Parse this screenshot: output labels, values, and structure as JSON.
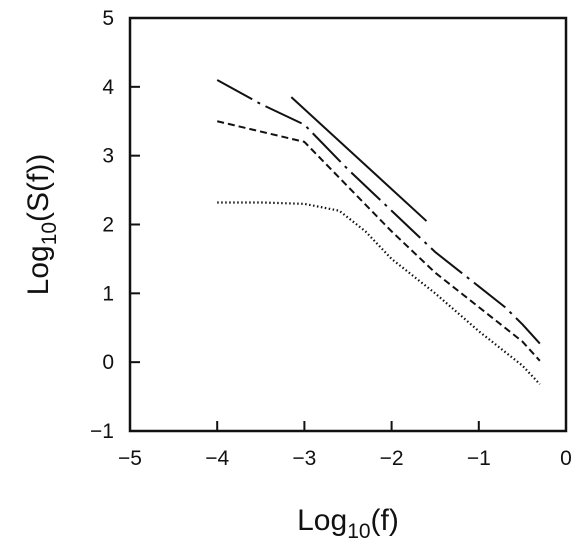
{
  "chart_data": {
    "type": "line",
    "xlabel": "Log10(f)",
    "ylabel": "Log10(S(f))",
    "xlim": [
      -5,
      0
    ],
    "ylim": [
      -1,
      5
    ],
    "x_ticks": [
      -5,
      -4,
      -3,
      -2,
      -1,
      0
    ],
    "y_ticks": [
      -1,
      0,
      1,
      2,
      3,
      4,
      5
    ],
    "x_tick_labels": [
      "−5",
      "−4",
      "−3",
      "−2",
      "−1",
      "0"
    ],
    "y_tick_labels": [
      "−1",
      "0",
      "1",
      "2",
      "3",
      "4",
      "5"
    ],
    "grid": false,
    "legend": "none",
    "series": [
      {
        "style": "long-dash",
        "color": "#111111",
        "points": [
          [
            -4.0,
            4.1
          ],
          [
            -3.5,
            3.75
          ],
          [
            -3.0,
            3.45
          ],
          [
            -2.5,
            2.8
          ],
          [
            -2.0,
            2.2
          ],
          [
            -1.5,
            1.6
          ],
          [
            -1.0,
            1.1
          ],
          [
            -0.7,
            0.8
          ],
          [
            -0.5,
            0.55
          ],
          [
            -0.3,
            0.27
          ]
        ]
      },
      {
        "style": "short-dash",
        "color": "#111111",
        "points": [
          [
            -4.0,
            3.5
          ],
          [
            -3.5,
            3.35
          ],
          [
            -3.0,
            3.2
          ],
          [
            -2.5,
            2.55
          ],
          [
            -2.0,
            1.9
          ],
          [
            -1.5,
            1.3
          ],
          [
            -1.0,
            0.8
          ],
          [
            -0.7,
            0.5
          ],
          [
            -0.5,
            0.3
          ],
          [
            -0.3,
            0.02
          ]
        ]
      },
      {
        "style": "dotted",
        "color": "#111111",
        "points": [
          [
            -4.0,
            2.32
          ],
          [
            -3.5,
            2.32
          ],
          [
            -3.0,
            2.3
          ],
          [
            -2.6,
            2.2
          ],
          [
            -2.3,
            1.9
          ],
          [
            -2.0,
            1.5
          ],
          [
            -1.5,
            1.0
          ],
          [
            -1.0,
            0.45
          ],
          [
            -0.7,
            0.15
          ],
          [
            -0.5,
            -0.05
          ],
          [
            -0.3,
            -0.32
          ]
        ]
      }
    ],
    "reference_lines": [
      {
        "style": "solid",
        "color": "#111111",
        "points": [
          [
            -3.15,
            3.85
          ],
          [
            -1.6,
            2.05
          ]
        ]
      }
    ]
  }
}
